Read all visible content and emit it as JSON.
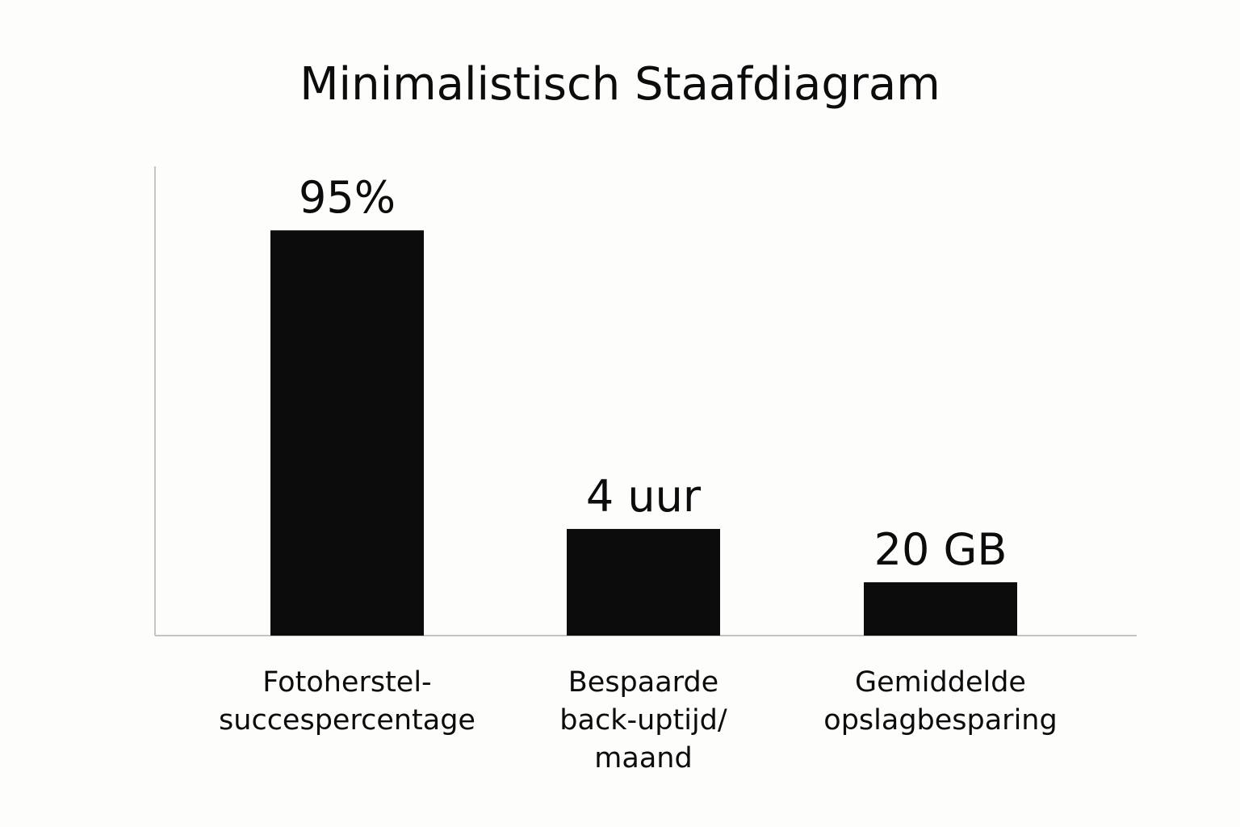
{
  "chart_data": {
    "type": "bar",
    "title": "Minimalistisch Staafdiagram",
    "xlabel": "",
    "ylabel": "",
    "grid": false,
    "legend": "none",
    "categories": [
      [
        "Fotoherstel-",
        "succespercentage"
      ],
      [
        "Bespaarde",
        "back-uptijd/",
        "maand"
      ],
      [
        "Gemiddelde",
        "opslagbesparing"
      ]
    ],
    "values": [
      95,
      25,
      12.5
    ],
    "value_labels": [
      "95%",
      "4 uur",
      "20 GB"
    ],
    "ylim": [
      0,
      110
    ],
    "colors": {
      "bar": "#0c0c0c",
      "axis": "#c4c4c4",
      "text": "#0c0c0c",
      "background": "#fdfdfb"
    }
  }
}
